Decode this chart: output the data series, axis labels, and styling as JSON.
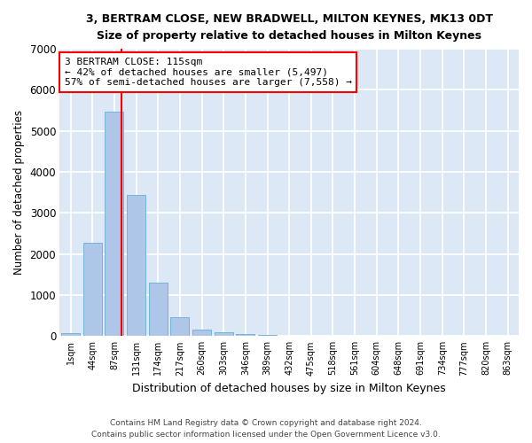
{
  "title": "3, BERTRAM CLOSE, NEW BRADWELL, MILTON KEYNES, MK13 0DT",
  "subtitle": "Size of property relative to detached houses in Milton Keynes",
  "xlabel": "Distribution of detached houses by size in Milton Keynes",
  "ylabel": "Number of detached properties",
  "bar_color": "#aec6e8",
  "bar_edge_color": "#6aaed6",
  "background_color": "#dce8f5",
  "grid_color": "#ffffff",
  "categories": [
    "1sqm",
    "44sqm",
    "87sqm",
    "131sqm",
    "174sqm",
    "217sqm",
    "260sqm",
    "303sqm",
    "346sqm",
    "389sqm",
    "432sqm",
    "475sqm",
    "518sqm",
    "561sqm",
    "604sqm",
    "648sqm",
    "691sqm",
    "734sqm",
    "777sqm",
    "820sqm",
    "863sqm"
  ],
  "values": [
    75,
    2275,
    5470,
    3430,
    1310,
    460,
    155,
    85,
    50,
    30,
    0,
    0,
    0,
    0,
    0,
    0,
    0,
    0,
    0,
    0,
    0
  ],
  "ylim": [
    0,
    7000
  ],
  "yticks": [
    0,
    1000,
    2000,
    3000,
    4000,
    5000,
    6000,
    7000
  ],
  "property_line_x": 2.33,
  "annotation_text": "3 BERTRAM CLOSE: 115sqm\n← 42% of detached houses are smaller (5,497)\n57% of semi-detached houses are larger (7,558) →",
  "annotation_box_color": "white",
  "annotation_box_edge_color": "red",
  "line_color": "red",
  "footer_line1": "Contains HM Land Registry data © Crown copyright and database right 2024.",
  "footer_line2": "Contains public sector information licensed under the Open Government Licence v3.0."
}
